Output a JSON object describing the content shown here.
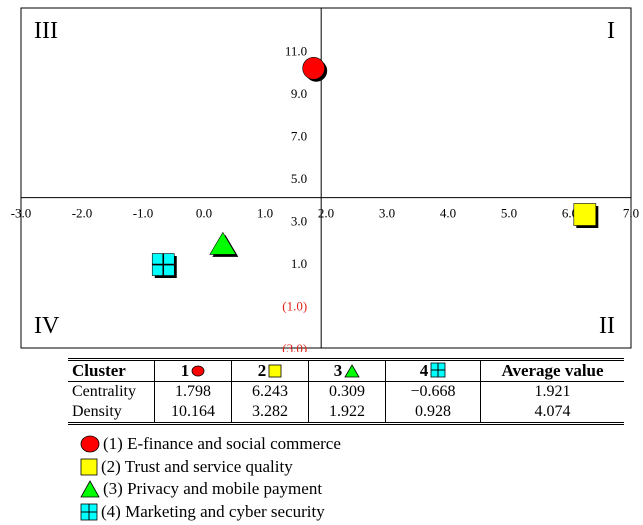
{
  "chart_data": {
    "type": "scatter",
    "x_ticks": [
      "-3.0",
      "-2.0",
      "-1.0",
      "0.0",
      "1.0",
      "2.0",
      "3.0",
      "4.0",
      "5.0",
      "6.0",
      "7.0"
    ],
    "y_ticks": [
      {
        "value": 11,
        "label": "11.0",
        "color": "#000000"
      },
      {
        "value": 9,
        "label": "9.0",
        "color": "#000000"
      },
      {
        "value": 7,
        "label": "7.0",
        "color": "#000000"
      },
      {
        "value": 5,
        "label": "5.0",
        "color": "#000000"
      },
      {
        "value": 3,
        "label": "3.0",
        "color": "#000000"
      },
      {
        "value": 1,
        "label": "1.0",
        "color": "#000000"
      },
      {
        "value": -1,
        "label": "(1.0)",
        "color": "#e0241b"
      },
      {
        "value": -3,
        "label": "(3.0)",
        "color": "#e0241b"
      }
    ],
    "xlim": [
      -3,
      7
    ],
    "ylim": [
      -3,
      13
    ],
    "x_axis_crossing_y": 4.074,
    "y_axis_crossing_x": 1.921,
    "quadrants": {
      "top_left": "III",
      "top_right": "I",
      "bottom_left": "IV",
      "bottom_right": "II"
    },
    "points": [
      {
        "cluster": "1",
        "x": 1.798,
        "y": 10.164,
        "marker": "circle",
        "color": "#ff0000"
      },
      {
        "cluster": "2",
        "x": 6.243,
        "y": 3.282,
        "marker": "square",
        "color": "#ffff00"
      },
      {
        "cluster": "3",
        "x": 0.309,
        "y": 1.922,
        "marker": "triangle",
        "color": "#00ff00"
      },
      {
        "cluster": "4",
        "x": -0.668,
        "y": 0.928,
        "marker": "square-cross",
        "color": "#00ffff"
      }
    ]
  },
  "table": {
    "headers": [
      "Cluster",
      "1",
      "2",
      "3",
      "4",
      "Average value"
    ],
    "header_markers": [
      "",
      "circle",
      "square",
      "triangle",
      "square-cross",
      ""
    ],
    "rows": [
      {
        "label": "Centrality",
        "values": [
          "1.798",
          "6.243",
          "0.309",
          "−0.668",
          "1.921"
        ]
      },
      {
        "label": "Density",
        "values": [
          "10.164",
          "3.282",
          "1.922",
          "0.928",
          "4.074"
        ]
      }
    ]
  },
  "legend": [
    {
      "marker": "circle",
      "color": "#ff0000",
      "label": "(1) E-finance and social commerce"
    },
    {
      "marker": "square",
      "color": "#ffff00",
      "label": "(2) Trust and service quality"
    },
    {
      "marker": "triangle",
      "color": "#00ff00",
      "label": "(3) Privacy and mobile payment"
    },
    {
      "marker": "square-cross",
      "color": "#00ffff",
      "label": "(4) Marketing and cyber security"
    }
  ]
}
